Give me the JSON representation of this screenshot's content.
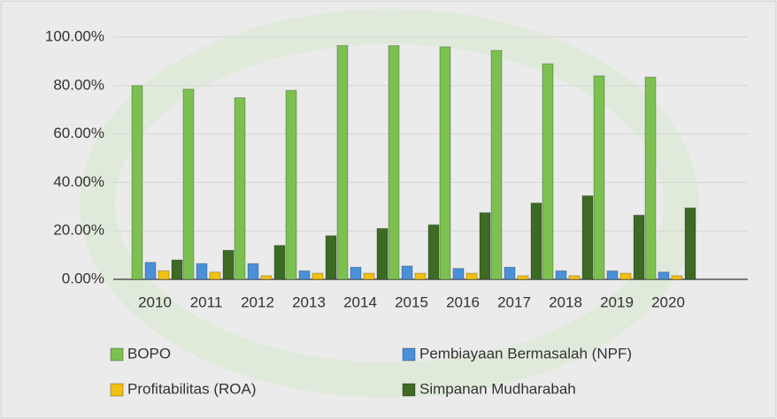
{
  "chart_data": {
    "type": "bar",
    "categories": [
      "2010",
      "2011",
      "2012",
      "2013",
      "2014",
      "2015",
      "2016",
      "2017",
      "2018",
      "2019",
      "2020"
    ],
    "series": [
      {
        "name": "BOPO",
        "color": "#7cc150",
        "values": [
          80,
          78.5,
          75,
          78,
          96.5,
          96.5,
          96,
          94.5,
          89,
          84,
          83.5
        ]
      },
      {
        "name": "Pembiayaan Bermasalah (NPF)",
        "color": "#4a90d9",
        "values": [
          7,
          6.5,
          6.5,
          3.5,
          5,
          5.5,
          4.5,
          5,
          3.5,
          3.5,
          3
        ]
      },
      {
        "name": "Profitabilitas (ROA)",
        "color": "#f2c010",
        "values": [
          3.5,
          3,
          1.5,
          2.5,
          2.5,
          2.5,
          2.5,
          1.5,
          1.5,
          2.5,
          1.5
        ]
      },
      {
        "name": "Simpanan Mudharabah",
        "color": "#3d6b25",
        "values": [
          8,
          12,
          14,
          18,
          21,
          22.5,
          27.5,
          31.5,
          34.5,
          26.5,
          29.5
        ]
      }
    ],
    "ylim": [
      0,
      100
    ],
    "yticks": [
      {
        "value": 0,
        "label": "0.00%"
      },
      {
        "value": 20,
        "label": "20.00%"
      },
      {
        "value": 40,
        "label": "40.00%"
      },
      {
        "value": 60,
        "label": "60.00%"
      },
      {
        "value": 80,
        "label": "80.00%"
      },
      {
        "value": 100,
        "label": "100.00%"
      }
    ],
    "grid": true,
    "legend": "bottom"
  }
}
